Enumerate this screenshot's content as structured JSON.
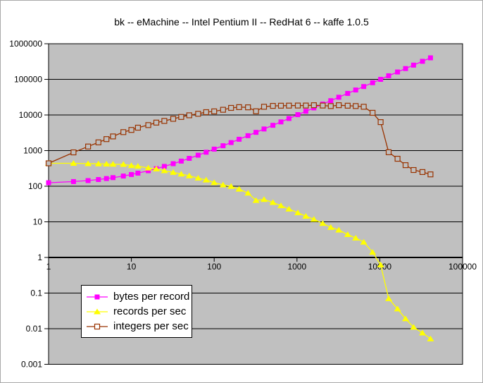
{
  "title": "bk -- eMachine -- Intel Pentium II -- RedHat 6 -- kaffe 1.0.5",
  "colors": {
    "plot_background": "#c0c0c0",
    "gridline": "#000000",
    "axis": "#000000",
    "text": "#000000",
    "series_bytes": "#ff00ff",
    "series_records": "#ffff00",
    "series_integers": "#993300"
  },
  "legend": {
    "items": [
      {
        "label": "bytes per record",
        "color": "#ff00ff",
        "marker": "filled-square"
      },
      {
        "label": "records per sec",
        "color": "#ffff00",
        "marker": "filled-triangle"
      },
      {
        "label": "integers per sec",
        "color": "#993300",
        "marker": "open-square"
      }
    ]
  },
  "chart_data": {
    "type": "line",
    "title": "bk -- eMachine -- Intel Pentium II -- RedHat 6 -- kaffe 1.0.5",
    "xlabel": "",
    "ylabel": "",
    "x_scale": "log",
    "y_scale": "log",
    "xlim": [
      1,
      100000
    ],
    "ylim": [
      0.001,
      1000000
    ],
    "grid": "horizontal-only",
    "legend_position": "inside-bottom-left",
    "x_axis": {
      "ticks": [
        {
          "value": 1,
          "label": "1"
        },
        {
          "value": 10,
          "label": "10"
        },
        {
          "value": 100,
          "label": "100"
        },
        {
          "value": 1000,
          "label": "1000"
        },
        {
          "value": 10000,
          "label": "10000"
        },
        {
          "value": 100000,
          "label": "100000"
        }
      ]
    },
    "y_axis": {
      "ticks": [
        {
          "value": 1000000,
          "label": "1000000"
        },
        {
          "value": 100000,
          "label": "100000"
        },
        {
          "value": 10000,
          "label": "10000"
        },
        {
          "value": 1000,
          "label": "1000"
        },
        {
          "value": 100,
          "label": "100"
        },
        {
          "value": 10,
          "label": "10"
        },
        {
          "value": 1,
          "label": "1"
        },
        {
          "value": 0.1,
          "label": "0.1"
        },
        {
          "value": 0.01,
          "label": "0.01"
        },
        {
          "value": 0.001,
          "label": "0.001"
        }
      ]
    },
    "x": [
      1,
      2,
      3,
      4,
      5,
      6,
      8,
      10,
      12,
      16,
      20,
      25,
      32,
      40,
      50,
      64,
      80,
      100,
      128,
      160,
      200,
      256,
      320,
      400,
      512,
      640,
      800,
      1024,
      1280,
      1600,
      2048,
      2560,
      3200,
      4096,
      5120,
      6400,
      8192,
      10240,
      12800,
      16384,
      20480,
      25600,
      32768,
      40960
    ],
    "series": [
      {
        "name": "bytes per record",
        "color": "#ff00ff",
        "marker": "filled-square",
        "values": [
          125,
          135,
          144,
          154,
          164,
          174,
          193,
          213,
          233,
          272,
          311,
          360,
          429,
          507,
          605,
          742,
          899,
          1100,
          1370,
          1680,
          2080,
          2620,
          3250,
          4040,
          5130,
          6390,
          7960,
          10200,
          12700,
          15800,
          20200,
          25200,
          31500,
          40300,
          50300,
          62800,
          80400,
          100000,
          126000,
          161000,
          201000,
          251000,
          321000,
          402000
        ]
      },
      {
        "name": "records per sec",
        "color": "#ffff00",
        "marker": "filled-triangle",
        "values": [
          440,
          440,
          430,
          425,
          420,
          415,
          410,
          380,
          365,
          325,
          305,
          272,
          244,
          220,
          196,
          169,
          150,
          126,
          109,
          99,
          83,
          64,
          40,
          42.5,
          35,
          28.4,
          22.9,
          18,
          14.4,
          11.8,
          9,
          7,
          5.9,
          4.4,
          3.5,
          2.7,
          1.4,
          0.62,
          0.07,
          0.036,
          0.019,
          0.011,
          0.0076,
          0.0052
        ]
      },
      {
        "name": "integers per sec",
        "color": "#993300",
        "marker": "open-square",
        "values": [
          440,
          890,
          1300,
          1700,
          2100,
          2500,
          3300,
          3800,
          4400,
          5200,
          6100,
          6800,
          7800,
          8800,
          9800,
          10800,
          12000,
          12600,
          14000,
          15800,
          16600,
          16400,
          12700,
          17000,
          18000,
          18200,
          18300,
          18400,
          18400,
          18800,
          18400,
          17800,
          18800,
          18200,
          17800,
          17000,
          11500,
          6300,
          900,
          590,
          390,
          285,
          250,
          215
        ]
      }
    ]
  }
}
